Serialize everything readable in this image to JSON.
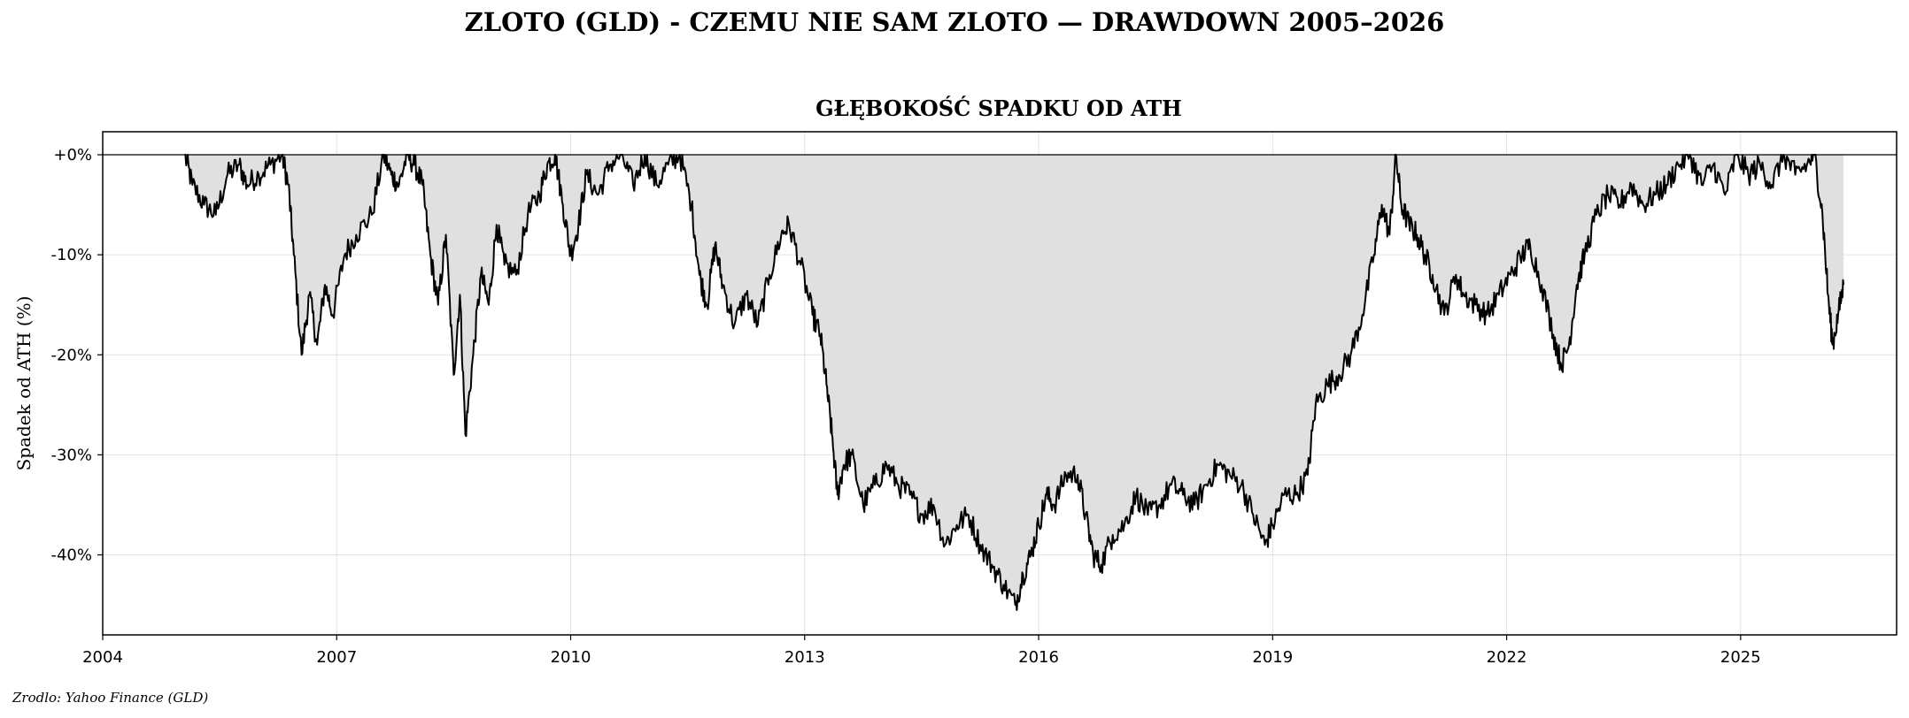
{
  "page": {
    "suptitle": "ZLOTO (GLD) - CZEMU NIE SAM ZLOTO — DRAWDOWN 2005–2026",
    "source": "Zrodlo: Yahoo Finance (GLD)"
  },
  "chart_data": {
    "type": "area",
    "title": "GŁĘBOKOŚĆ SPADKU OD ATH",
    "xlabel": "",
    "ylabel": "Spadek od ATH (%)",
    "xlim": [
      2004.0,
      2027.0
    ],
    "ylim": [
      -48,
      2.3
    ],
    "x_ticks": [
      2004,
      2007,
      2010,
      2013,
      2016,
      2019,
      2022,
      2025
    ],
    "x_tick_labels": [
      "2004",
      "2007",
      "2010",
      "2013",
      "2016",
      "2019",
      "2022",
      "2025"
    ],
    "y_ticks": [
      0,
      -10,
      -20,
      -30,
      -40
    ],
    "y_tick_labels": [
      "+0%",
      "-10%",
      "-20%",
      "-30%",
      "-40%"
    ],
    "grid": true,
    "line_color": "#000000",
    "fill_color": "#e0e0e0",
    "series": [
      {
        "x": [
          2005.05,
          2005.15,
          2005.3,
          2005.45,
          2005.6,
          2005.75,
          2005.85,
          2006.0,
          2006.15,
          2006.3,
          2006.38,
          2006.45,
          2006.55,
          2006.65,
          2006.75,
          2006.85,
          2006.95,
          2007.1,
          2007.25,
          2007.45,
          2007.6,
          2007.7,
          2007.8,
          2007.9,
          2008.0,
          2008.1,
          2008.2,
          2008.3,
          2008.4,
          2008.5,
          2008.58,
          2008.65,
          2008.75,
          2008.85,
          2008.95,
          2009.05,
          2009.15,
          2009.3,
          2009.45,
          2009.6,
          2009.7,
          2009.8,
          2009.9,
          2010.0,
          2010.1,
          2010.2,
          2010.35,
          2010.5,
          2010.65,
          2010.8,
          2010.95,
          2011.1,
          2011.25,
          2011.4,
          2011.55,
          2011.65,
          2011.75,
          2011.85,
          2011.95,
          2012.1,
          2012.25,
          2012.4,
          2012.55,
          2012.7,
          2012.8,
          2012.95,
          2013.1,
          2013.2,
          2013.28,
          2013.35,
          2013.42,
          2013.5,
          2013.6,
          2013.75,
          2013.9,
          2014.05,
          2014.2,
          2014.35,
          2014.5,
          2014.65,
          2014.8,
          2014.95,
          2015.1,
          2015.25,
          2015.4,
          2015.55,
          2015.7,
          2015.8,
          2015.9,
          2016.0,
          2016.1,
          2016.2,
          2016.35,
          2016.5,
          2016.6,
          2016.7,
          2016.8,
          2016.95,
          2017.1,
          2017.25,
          2017.4,
          2017.55,
          2017.7,
          2017.85,
          2018.0,
          2018.15,
          2018.3,
          2018.45,
          2018.6,
          2018.75,
          2018.9,
          2019.0,
          2019.15,
          2019.3,
          2019.45,
          2019.55,
          2019.7,
          2019.85,
          2020.0,
          2020.15,
          2020.3,
          2020.4,
          2020.5,
          2020.58,
          2020.65,
          2020.75,
          2020.85,
          2020.95,
          2021.05,
          2021.2,
          2021.35,
          2021.45,
          2021.6,
          2021.75,
          2021.9,
          2022.05,
          2022.2,
          2022.3,
          2022.45,
          2022.6,
          2022.7,
          2022.8,
          2022.9,
          2023.0,
          2023.15,
          2023.3,
          2023.45,
          2023.6,
          2023.75,
          2023.9,
          2024.05,
          2024.2,
          2024.35,
          2024.5,
          2024.65,
          2024.8,
          2024.95,
          2025.1,
          2025.25,
          2025.4,
          2025.55,
          2025.7,
          2025.85,
          2025.95,
          2026.05,
          2026.12,
          2026.18,
          2026.25,
          2026.32
        ],
        "y": [
          0,
          -3,
          -5,
          -6,
          -2,
          -1,
          -3,
          -2,
          -1,
          0,
          -3,
          -10,
          -20,
          -14,
          -19,
          -13,
          -16,
          -10,
          -8,
          -6,
          0,
          -2,
          -3,
          0,
          -1,
          -3,
          -10,
          -15,
          -8,
          -22,
          -14,
          -28,
          -20,
          -12,
          -15,
          -7,
          -11,
          -12,
          -6,
          -4,
          -1,
          0,
          -5,
          -10,
          -7,
          -2,
          -4,
          -1,
          0,
          -3,
          0,
          -3,
          -1,
          0,
          -5,
          -12,
          -15,
          -9,
          -13,
          -17,
          -14,
          -17,
          -12,
          -8,
          -7,
          -11,
          -16,
          -18,
          -23,
          -28,
          -34,
          -31,
          -30,
          -35,
          -33,
          -31,
          -33,
          -34,
          -36,
          -35,
          -39,
          -37,
          -36,
          -39,
          -41,
          -43,
          -45,
          -42,
          -40,
          -37,
          -34,
          -35,
          -32,
          -32,
          -36,
          -40,
          -41,
          -38,
          -37,
          -34,
          -36,
          -35,
          -33,
          -34,
          -35,
          -33,
          -31,
          -32,
          -33,
          -36,
          -39,
          -37,
          -34,
          -34,
          -32,
          -25,
          -23,
          -22,
          -20,
          -16,
          -10,
          -5,
          -8,
          0,
          -5,
          -7,
          -8,
          -10,
          -12,
          -16,
          -12,
          -14,
          -15,
          -16,
          -14,
          -12,
          -10,
          -9,
          -13,
          -18,
          -21,
          -19,
          -13,
          -10,
          -6,
          -4,
          -5,
          -3,
          -5,
          -4,
          -3,
          -1,
          0,
          -3,
          -1,
          -4,
          0,
          -2,
          -1,
          -3,
          0,
          -2,
          -1,
          0,
          -6,
          -14,
          -19,
          -16,
          -13
        ]
      }
    ]
  }
}
